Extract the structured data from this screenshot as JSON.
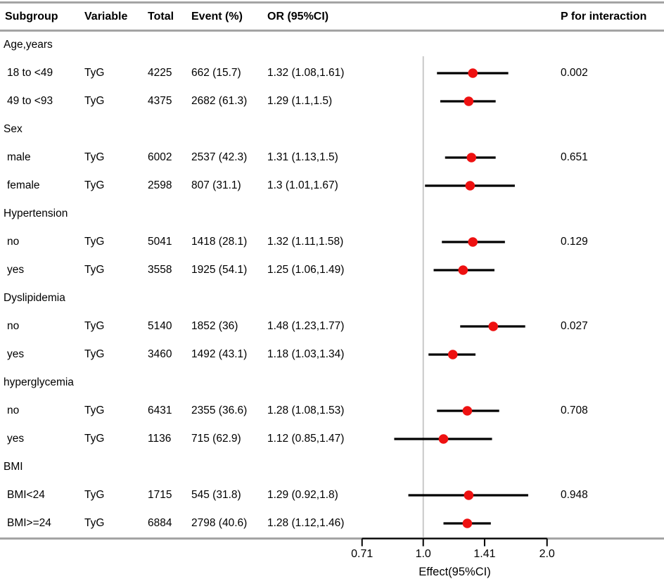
{
  "chart_data": {
    "type": "forest",
    "title": "",
    "xlabel": "Effect(95%CI)",
    "x_scale": "log2",
    "x_ticks": [
      "0.71",
      "1.0",
      "1.41",
      "2.0"
    ],
    "x_tick_values": [
      0.71,
      1.0,
      1.41,
      2.0
    ],
    "x_range": [
      0.62,
      2.55
    ],
    "reference_line": 1.0,
    "grid": "off",
    "legend": "none",
    "marker_color": "#ee1111",
    "ci_color": "#000000",
    "rule_color": "#a4a4a4",
    "reference_line_color": "#c3c3c3",
    "columns": [
      "Subgroup",
      "Variable",
      "Total",
      "Event (%)",
      "OR (95%CI)",
      "P for interaction"
    ],
    "rows": [
      {
        "type": "group",
        "subgroup": "Age,years"
      },
      {
        "type": "data",
        "subgroup": "18 to <49",
        "variable": "TyG",
        "total": "4225",
        "event_pct": "662 (15.7)",
        "or_ci": "1.32 (1.08,1.61)",
        "or": 1.32,
        "ci_low": 1.08,
        "ci_high": 1.61,
        "p_interaction": "0.002"
      },
      {
        "type": "data",
        "subgroup": "49 to <93",
        "variable": "TyG",
        "total": "4375",
        "event_pct": "2682 (61.3)",
        "or_ci": "1.29 (1.1,1.5)",
        "or": 1.29,
        "ci_low": 1.1,
        "ci_high": 1.5,
        "p_interaction": ""
      },
      {
        "type": "group",
        "subgroup": "Sex"
      },
      {
        "type": "data",
        "subgroup": "male",
        "variable": "TyG",
        "total": "6002",
        "event_pct": "2537 (42.3)",
        "or_ci": "1.31 (1.13,1.5)",
        "or": 1.31,
        "ci_low": 1.13,
        "ci_high": 1.5,
        "p_interaction": "0.651"
      },
      {
        "type": "data",
        "subgroup": "female",
        "variable": "TyG",
        "total": "2598",
        "event_pct": "807 (31.1)",
        "or_ci": "1.3 (1.01,1.67)",
        "or": 1.3,
        "ci_low": 1.01,
        "ci_high": 1.67,
        "p_interaction": ""
      },
      {
        "type": "group",
        "subgroup": "Hypertension"
      },
      {
        "type": "data",
        "subgroup": "no",
        "variable": "TyG",
        "total": "5041",
        "event_pct": "1418 (28.1)",
        "or_ci": "1.32 (1.11,1.58)",
        "or": 1.32,
        "ci_low": 1.11,
        "ci_high": 1.58,
        "p_interaction": "0.129"
      },
      {
        "type": "data",
        "subgroup": "yes",
        "variable": "TyG",
        "total": "3558",
        "event_pct": "1925 (54.1)",
        "or_ci": "1.25 (1.06,1.49)",
        "or": 1.25,
        "ci_low": 1.06,
        "ci_high": 1.49,
        "p_interaction": ""
      },
      {
        "type": "group",
        "subgroup": "Dyslipidemia"
      },
      {
        "type": "data",
        "subgroup": "no",
        "variable": "TyG",
        "total": "5140",
        "event_pct": "1852 (36)",
        "or_ci": "1.48 (1.23,1.77)",
        "or": 1.48,
        "ci_low": 1.23,
        "ci_high": 1.77,
        "p_interaction": "0.027"
      },
      {
        "type": "data",
        "subgroup": "yes",
        "variable": "TyG",
        "total": "3460",
        "event_pct": "1492 (43.1)",
        "or_ci": "1.18 (1.03,1.34)",
        "or": 1.18,
        "ci_low": 1.03,
        "ci_high": 1.34,
        "p_interaction": ""
      },
      {
        "type": "group",
        "subgroup": "hyperglycemia"
      },
      {
        "type": "data",
        "subgroup": "no",
        "variable": "TyG",
        "total": "6431",
        "event_pct": "2355 (36.6)",
        "or_ci": "1.28 (1.08,1.53)",
        "or": 1.28,
        "ci_low": 1.08,
        "ci_high": 1.53,
        "p_interaction": "0.708"
      },
      {
        "type": "data",
        "subgroup": "yes",
        "variable": "TyG",
        "total": "1136",
        "event_pct": "715 (62.9)",
        "or_ci": "1.12 (0.85,1.47)",
        "or": 1.12,
        "ci_low": 0.85,
        "ci_high": 1.47,
        "p_interaction": ""
      },
      {
        "type": "group",
        "subgroup": "BMI"
      },
      {
        "type": "data",
        "subgroup": "BMI<24",
        "variable": "TyG",
        "total": "1715",
        "event_pct": "545 (31.8)",
        "or_ci": "1.29 (0.92,1.8)",
        "or": 1.29,
        "ci_low": 0.92,
        "ci_high": 1.8,
        "p_interaction": "0.948"
      },
      {
        "type": "data",
        "subgroup": "BMI>=24",
        "variable": "TyG",
        "total": "6884",
        "event_pct": "2798 (40.6)",
        "or_ci": "1.28 (1.12,1.46)",
        "or": 1.28,
        "ci_low": 1.12,
        "ci_high": 1.46,
        "p_interaction": ""
      }
    ]
  }
}
